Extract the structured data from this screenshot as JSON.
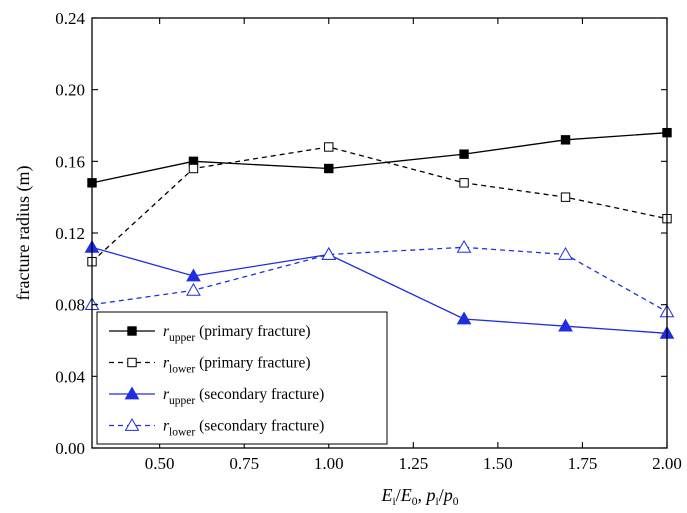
{
  "chart_data": {
    "type": "line",
    "title": "",
    "xlabel_parts": {
      "e": "E",
      "e_sub": "i",
      "e0": "E",
      "e0_sub": "0",
      "sep": ", ",
      "p": "p",
      "p_sub": "i",
      "p0": "p",
      "p0_sub": "0",
      "slash": "/"
    },
    "ylabel": "fracture radius (m)",
    "xlim": [
      0.3,
      2.0
    ],
    "ylim": [
      0.0,
      0.24
    ],
    "xticks": [
      0.5,
      0.75,
      1.0,
      1.25,
      1.5,
      1.75,
      2.0
    ],
    "xtick_labels": [
      "0.50",
      "0.75",
      "1.00",
      "1.25",
      "1.50",
      "1.75",
      "2.00"
    ],
    "yticks": [
      0.0,
      0.04,
      0.08,
      0.12,
      0.16,
      0.2,
      0.24
    ],
    "ytick_labels": [
      "0.00",
      "0.04",
      "0.08",
      "0.12",
      "0.16",
      "0.20",
      "0.24"
    ],
    "grid": false,
    "legend_placement": "bottom-left",
    "x": [
      0.3,
      0.6,
      1.0,
      1.4,
      1.7,
      2.0
    ],
    "series": [
      {
        "name_symbol": "r",
        "name_sub": "upper",
        "name_desc": "(primary fracture)",
        "values": [
          0.148,
          0.16,
          0.156,
          0.164,
          0.172,
          0.176
        ],
        "color": "#000000",
        "dash": "solid",
        "marker": "square",
        "filled": true
      },
      {
        "name_symbol": "r",
        "name_sub": "lower",
        "name_desc": "(primary fracture)",
        "values": [
          0.104,
          0.156,
          0.168,
          0.148,
          0.14,
          0.128
        ],
        "color": "#000000",
        "dash": "dashed",
        "marker": "square",
        "filled": false
      },
      {
        "name_symbol": "r",
        "name_sub": "upper",
        "name_desc": "(secondary fracture)",
        "values": [
          0.112,
          0.096,
          0.108,
          0.072,
          0.068,
          0.064
        ],
        "color": "#1f2fe0",
        "dash": "solid",
        "marker": "triangle",
        "filled": true
      },
      {
        "name_symbol": "r",
        "name_sub": "lower",
        "name_desc": "(secondary fracture)",
        "values": [
          0.08,
          0.088,
          0.108,
          0.112,
          0.108,
          0.076
        ],
        "color": "#1f2fe0",
        "dash": "dashed",
        "marker": "triangle",
        "filled": false
      }
    ]
  }
}
